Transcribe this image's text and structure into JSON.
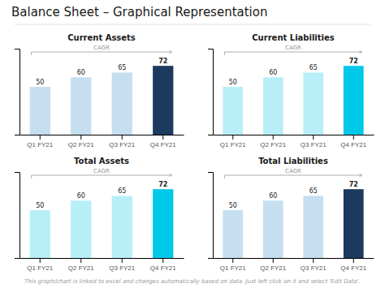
{
  "title": "Balance Sheet – Graphical Representation",
  "annotations": [
    "This graph/chart is linked to excel and changes automatically based on data. Just left click on it and select 'Edit Data'."
  ],
  "chart_data": [
    {
      "type": "bar",
      "title": "Current Assets",
      "categories": [
        "Q1 FY21",
        "Q2 FY21",
        "Q3 FY21",
        "Q4 FY21"
      ],
      "values": [
        50,
        60,
        65,
        72
      ],
      "colors": [
        "#c5dff0",
        "#c5dff0",
        "#c5dff0",
        "#1b3a5e"
      ],
      "ylim": [
        0,
        90
      ],
      "yticks": [],
      "tick_labels": "x",
      "data_labels": true,
      "annotations": [
        "CAGR"
      ]
    },
    {
      "type": "bar",
      "title": "Current Liabilities",
      "categories": [
        "Q1 FY21",
        "Q2 FY21",
        "Q3 FY21",
        "Q4 FY21"
      ],
      "values": [
        50,
        60,
        65,
        72
      ],
      "colors": [
        "#b8eef8",
        "#b8eef8",
        "#b8eef8",
        "#00c8e8"
      ],
      "ylim": [
        0,
        90
      ],
      "yticks": [],
      "tick_labels": "x",
      "data_labels": true,
      "annotations": [
        "CAGR"
      ]
    },
    {
      "type": "bar",
      "title": "Total Assets",
      "categories": [
        "Q1 FY21",
        "Q2 FY21",
        "Q3 FY21",
        "Q4 FY21"
      ],
      "values": [
        50,
        60,
        65,
        72
      ],
      "colors": [
        "#b8eef8",
        "#b8eef8",
        "#b8eef8",
        "#00c8e8"
      ],
      "ylim": [
        0,
        90
      ],
      "yticks": [],
      "tick_labels": "x",
      "data_labels": true,
      "annotations": [
        "CAGR"
      ]
    },
    {
      "type": "bar",
      "title": "Total Liabilities",
      "categories": [
        "Q1 FY21",
        "Q2 FY21",
        "Q3 FY21",
        "Q4 FY21"
      ],
      "values": [
        50,
        60,
        65,
        72
      ],
      "colors": [
        "#c5dff0",
        "#c5dff0",
        "#c5dff0",
        "#1b3a5e"
      ],
      "ylim": [
        0,
        90
      ],
      "yticks": [],
      "tick_labels": "x",
      "data_labels": true,
      "annotations": [
        "CAGR"
      ]
    }
  ]
}
